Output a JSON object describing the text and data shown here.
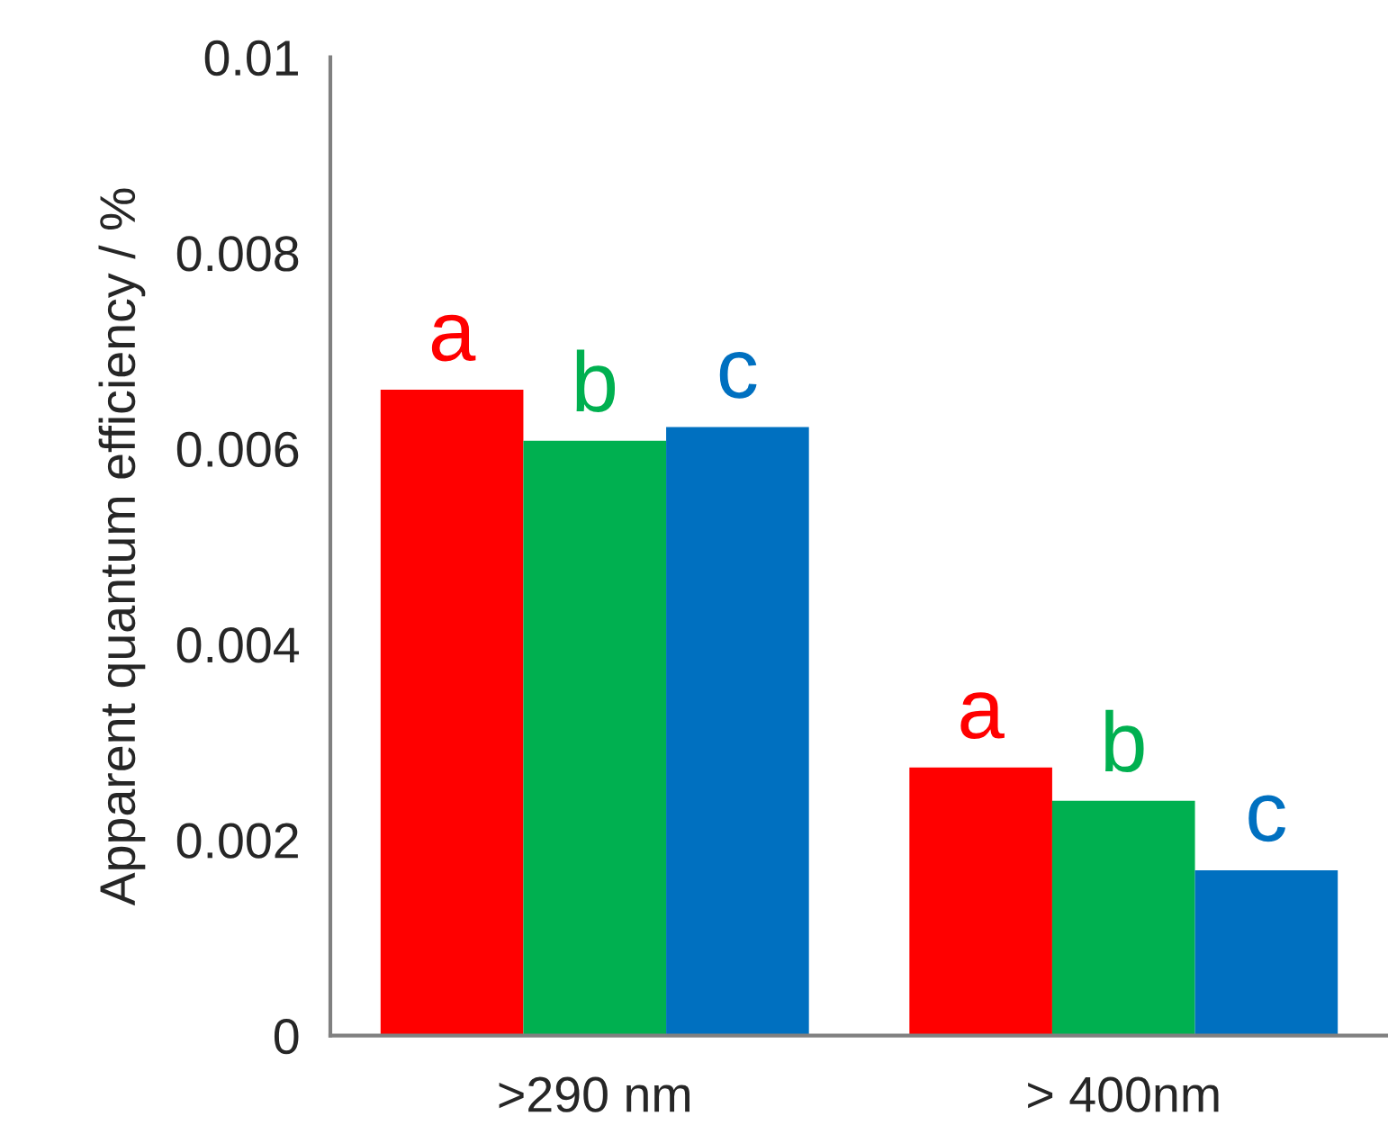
{
  "chart_data": {
    "type": "bar",
    "ylabel": "Apparent quantum efficiency / %",
    "categories": [
      ">290 nm",
      "> 400nm"
    ],
    "series": [
      {
        "name": "a",
        "color": "#ff0000",
        "values": [
          0.0066,
          0.00274
        ]
      },
      {
        "name": "b",
        "color": "#00b050",
        "values": [
          0.00608,
          0.0024
        ]
      },
      {
        "name": "c",
        "color": "#0070c0",
        "values": [
          0.00622,
          0.00169
        ]
      }
    ],
    "ylim": [
      0,
      0.01
    ],
    "yticks": [
      0,
      0.002,
      0.004,
      0.006,
      0.008,
      0.01
    ],
    "grid": false,
    "legend": false
  }
}
